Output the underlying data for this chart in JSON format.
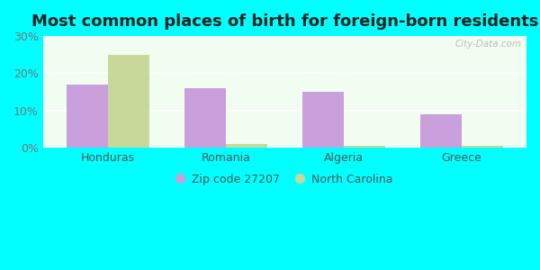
{
  "title": "Most common places of birth for foreign-born residents",
  "categories": [
    "Honduras",
    "Romania",
    "Algeria",
    "Greece"
  ],
  "zip_values": [
    17.0,
    16.0,
    15.0,
    9.0
  ],
  "nc_values": [
    25.0,
    1.0,
    0.5,
    0.5
  ],
  "zip_color": "#c9a0dc",
  "nc_color": "#c8d89a",
  "zip_label": "Zip code 27207",
  "nc_label": "North Carolina",
  "ylim": [
    0,
    30
  ],
  "yticks": [
    0,
    10,
    20,
    30
  ],
  "ytick_labels": [
    "0%",
    "10%",
    "20%",
    "30%"
  ],
  "background_color": "#00ffff",
  "plot_bg_top": "#f5fff5",
  "plot_bg_bottom": "#efffef",
  "title_fontsize": 13,
  "bar_width": 0.35,
  "watermark": "City-Data.com",
  "tick_color": "#777777",
  "label_color": "#555555"
}
